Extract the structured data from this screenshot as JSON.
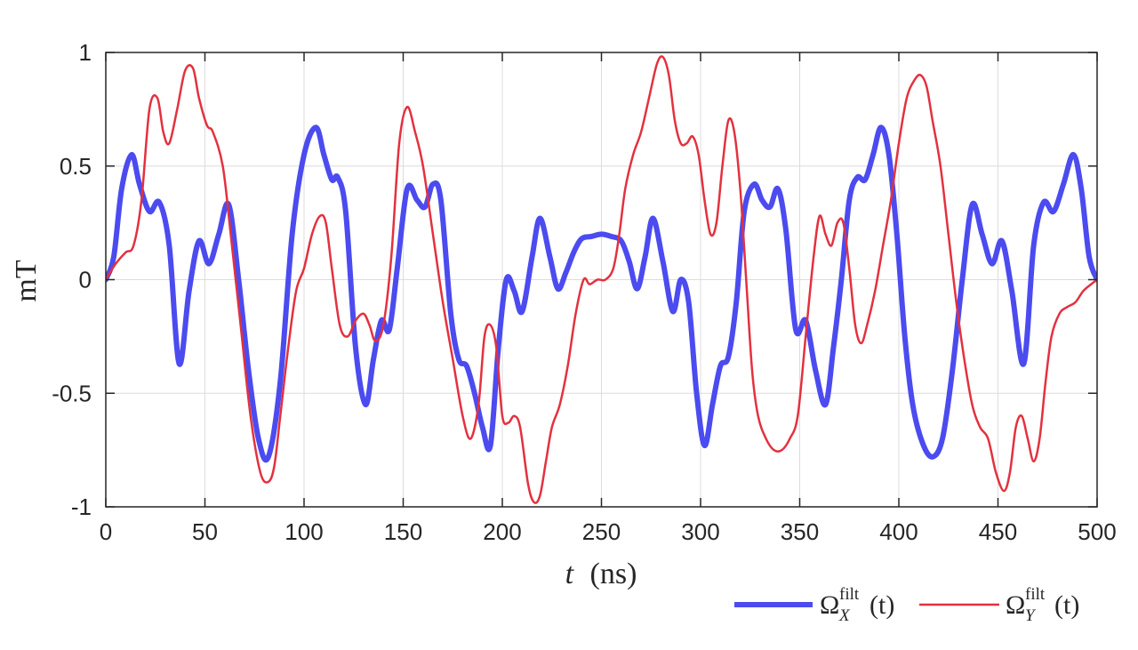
{
  "chart_data": {
    "type": "line",
    "xlabel_var": "t",
    "xlabel_unit": "(ns)",
    "ylabel": "mT",
    "xlim": [
      0,
      500
    ],
    "ylim": [
      -1,
      1
    ],
    "xticks": [
      0,
      50,
      100,
      150,
      200,
      250,
      300,
      350,
      400,
      450,
      500
    ],
    "yticks": [
      -1,
      -0.5,
      0,
      0.5,
      1
    ],
    "xtick_labels": [
      "0",
      "50",
      "100",
      "150",
      "200",
      "250",
      "300",
      "350",
      "400",
      "450",
      "500"
    ],
    "ytick_labels": [
      "-1",
      "-0.5",
      "0",
      "0.5",
      "1"
    ],
    "grid": true,
    "legend_position": "bottom-right",
    "series": [
      {
        "name": "Ω_X^filt(t)",
        "legend_base": "Ω",
        "legend_sup": "filt",
        "legend_sub": "X",
        "legend_arg": "(t)",
        "color": "#4b4bf0",
        "linewidth": 6,
        "x": [
          0,
          4,
          8,
          13,
          17,
          22,
          27,
          32,
          37,
          42,
          47,
          52,
          57,
          62,
          67,
          72,
          77,
          82,
          88,
          94,
          100,
          106,
          110,
          114,
          117,
          121,
          126,
          131,
          135,
          139,
          143,
          147,
          152,
          157,
          161,
          165,
          169,
          174,
          178,
          182,
          186,
          190,
          194,
          198,
          202,
          206,
          210,
          215,
          219,
          224,
          228,
          232,
          236,
          240,
          245,
          250,
          255,
          260,
          264,
          268,
          272,
          276,
          281,
          286,
          290,
          294,
          298,
          302,
          306,
          310,
          314,
          318,
          322,
          327,
          331,
          335,
          339,
          343,
          348,
          353,
          358,
          363,
          367,
          371,
          375,
          379,
          383,
          387,
          391,
          395,
          399,
          403,
          407,
          412,
          417,
          422,
          427,
          432,
          437,
          442,
          447,
          452,
          457,
          463,
          468,
          473,
          478,
          483,
          488,
          492,
          496,
          500
        ],
        "y": [
          0,
          0.1,
          0.4,
          0.55,
          0.42,
          0.3,
          0.34,
          0.15,
          -0.37,
          -0.05,
          0.17,
          0.07,
          0.2,
          0.33,
          0.0,
          -0.4,
          -0.7,
          -0.78,
          -0.45,
          0.2,
          0.55,
          0.67,
          0.55,
          0.44,
          0.45,
          0.3,
          -0.3,
          -0.55,
          -0.35,
          -0.18,
          -0.22,
          0.05,
          0.4,
          0.35,
          0.32,
          0.42,
          0.35,
          -0.15,
          -0.35,
          -0.38,
          -0.5,
          -0.65,
          -0.73,
          -0.3,
          0.0,
          -0.05,
          -0.14,
          0.1,
          0.27,
          0.1,
          -0.04,
          0.03,
          0.12,
          0.18,
          0.19,
          0.2,
          0.19,
          0.17,
          0.08,
          -0.04,
          0.1,
          0.27,
          0.08,
          -0.14,
          0.0,
          -0.1,
          -0.5,
          -0.73,
          -0.55,
          -0.38,
          -0.34,
          -0.1,
          0.3,
          0.42,
          0.35,
          0.32,
          0.4,
          0.22,
          -0.22,
          -0.18,
          -0.4,
          -0.55,
          -0.3,
          0.0,
          0.35,
          0.45,
          0.44,
          0.55,
          0.67,
          0.55,
          0.2,
          -0.25,
          -0.55,
          -0.72,
          -0.78,
          -0.7,
          -0.4,
          0.0,
          0.33,
          0.2,
          0.07,
          0.17,
          -0.05,
          -0.37,
          0.15,
          0.34,
          0.3,
          0.42,
          0.55,
          0.4,
          0.1,
          0
        ]
      },
      {
        "name": "Ω_Y^filt(t)",
        "legend_base": "Ω",
        "legend_sup": "filt",
        "legend_sub": "Y",
        "legend_arg": "(t)",
        "color": "#e3313f",
        "linewidth": 2.5,
        "x": [
          0,
          5,
          10,
          14,
          18,
          22,
          26,
          29,
          32,
          36,
          40,
          44,
          47,
          51,
          54,
          59,
          63,
          68,
          73,
          78,
          82,
          85,
          88,
          92,
          96,
          100,
          104,
          108,
          111,
          114,
          118,
          122,
          126,
          130,
          133,
          136,
          140,
          144,
          148,
          152,
          156,
          160,
          165,
          170,
          175,
          180,
          184,
          188,
          191,
          194,
          197,
          200,
          203,
          206,
          209,
          213,
          216,
          219,
          222,
          225,
          229,
          233,
          237,
          241,
          244,
          248,
          252,
          256,
          259,
          262,
          266,
          270,
          274,
          278,
          281,
          284,
          287,
          290,
          293,
          296,
          299,
          302,
          305,
          308,
          311,
          314,
          317,
          320,
          323,
          326,
          329,
          333,
          337,
          341,
          345,
          349,
          353,
          357,
          360,
          363,
          366,
          369,
          372,
          375,
          378,
          381,
          384,
          388,
          392,
          396,
          400,
          404,
          408,
          411,
          414,
          417,
          421,
          425,
          429,
          433,
          437,
          441,
          445,
          449,
          453,
          456,
          459,
          462,
          465,
          468,
          471,
          474,
          477,
          481,
          485,
          489,
          493,
          497,
          500
        ],
        "y": [
          0,
          0.07,
          0.12,
          0.15,
          0.35,
          0.75,
          0.8,
          0.65,
          0.6,
          0.75,
          0.92,
          0.93,
          0.8,
          0.68,
          0.65,
          0.5,
          0.2,
          -0.2,
          -0.6,
          -0.85,
          -0.89,
          -0.82,
          -0.6,
          -0.3,
          -0.05,
          0.05,
          0.2,
          0.28,
          0.25,
          0.05,
          -0.2,
          -0.25,
          -0.18,
          -0.15,
          -0.2,
          -0.27,
          -0.2,
          0.1,
          0.6,
          0.76,
          0.65,
          0.5,
          0.2,
          -0.1,
          -0.35,
          -0.6,
          -0.7,
          -0.55,
          -0.25,
          -0.2,
          -0.3,
          -0.6,
          -0.63,
          -0.6,
          -0.65,
          -0.9,
          -0.98,
          -0.95,
          -0.8,
          -0.65,
          -0.55,
          -0.38,
          -0.15,
          0.0,
          -0.02,
          0.0,
          0.0,
          0.05,
          0.2,
          0.4,
          0.55,
          0.65,
          0.8,
          0.95,
          0.98,
          0.9,
          0.7,
          0.6,
          0.6,
          0.63,
          0.55,
          0.35,
          0.2,
          0.25,
          0.5,
          0.7,
          0.65,
          0.4,
          0.0,
          -0.4,
          -0.6,
          -0.7,
          -0.75,
          -0.75,
          -0.7,
          -0.6,
          -0.25,
          0.1,
          0.28,
          0.2,
          0.15,
          0.25,
          0.25,
          0.05,
          -0.2,
          -0.28,
          -0.2,
          -0.05,
          0.15,
          0.35,
          0.6,
          0.8,
          0.88,
          0.9,
          0.85,
          0.7,
          0.5,
          0.2,
          -0.1,
          -0.35,
          -0.55,
          -0.65,
          -0.7,
          -0.85,
          -0.93,
          -0.85,
          -0.65,
          -0.6,
          -0.7,
          -0.8,
          -0.7,
          -0.45,
          -0.25,
          -0.15,
          -0.12,
          -0.1,
          -0.05,
          -0.02,
          0
        ]
      }
    ]
  }
}
